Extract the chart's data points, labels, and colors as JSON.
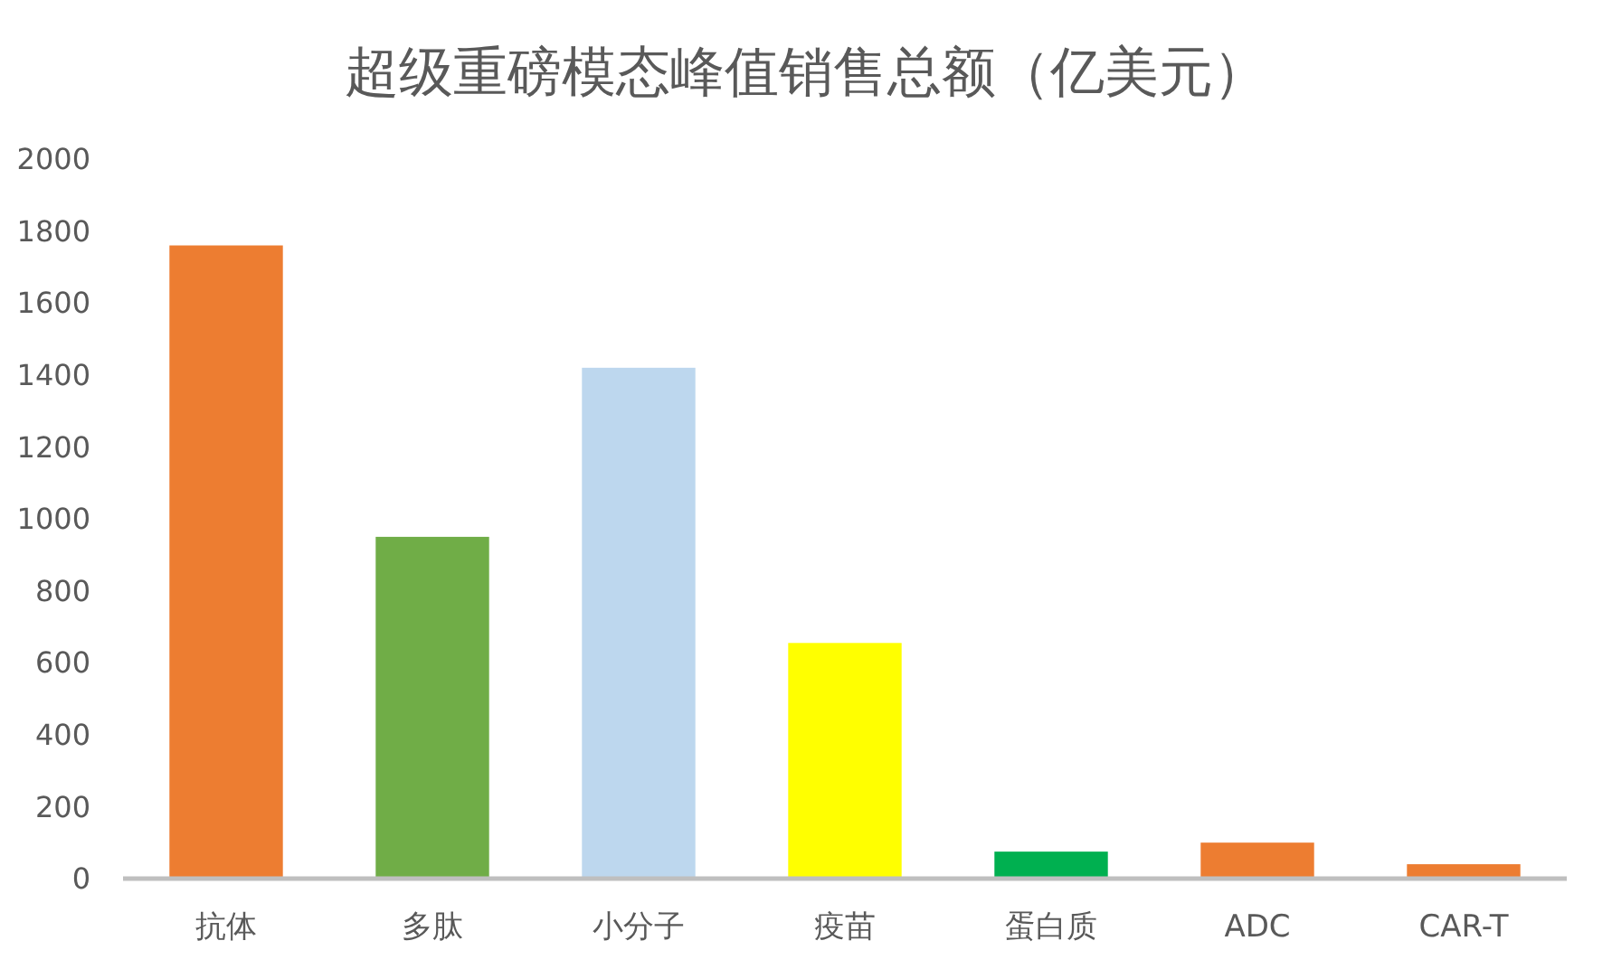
{
  "chart_data": {
    "type": "bar",
    "title": "超级重磅模态峰值销售总额（亿美元）",
    "categories": [
      "抗体",
      "多肽",
      "小分子",
      "疫苗",
      "蛋白质",
      "ADC",
      "CAR-T"
    ],
    "values": [
      1760,
      950,
      1420,
      655,
      75,
      100,
      40
    ],
    "colors": [
      "#ed7d31",
      "#70ad47",
      "#bdd7ee",
      "#ffff00",
      "#00b050",
      "#ed7d31",
      "#ed7d31"
    ],
    "ylim": [
      0,
      2000
    ],
    "yticks": [
      0,
      200,
      400,
      600,
      800,
      1000,
      1200,
      1400,
      1600,
      1800,
      2000
    ]
  }
}
